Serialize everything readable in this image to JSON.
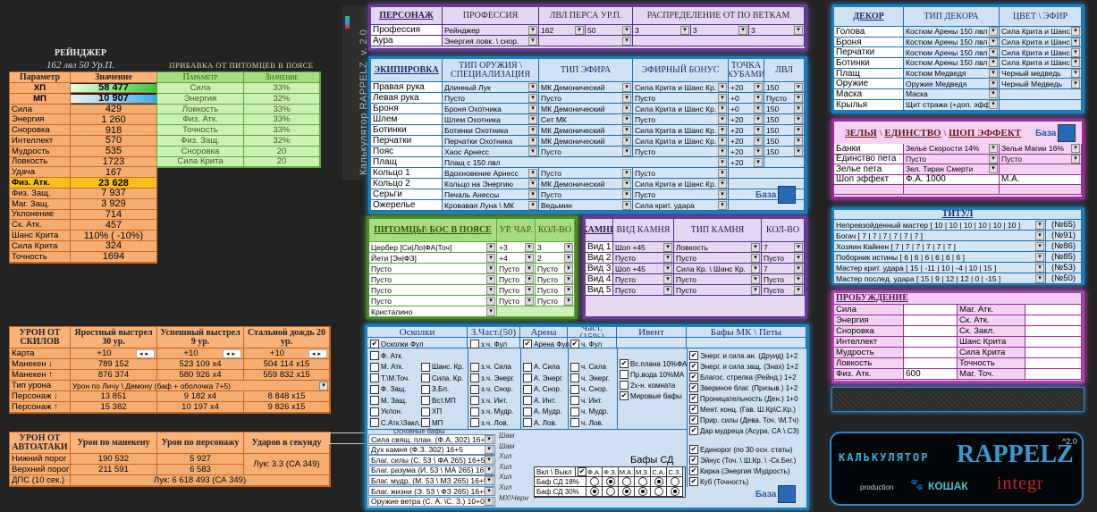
{
  "app": {
    "vertical_title": "Калькулятор RAPPELZ",
    "version": "v. 2.0"
  },
  "stats": {
    "class_title": "РЕЙНДЖЕР",
    "subtitle": "162 лвл 50 Ур.П.",
    "headers": [
      "Параметр",
      "Значение"
    ],
    "rows": [
      [
        "ХП",
        "58 477"
      ],
      [
        "МП",
        "10 907"
      ],
      [
        "Сила",
        "429"
      ],
      [
        "Энергия",
        "1 260"
      ],
      [
        "Сноровка",
        "918"
      ],
      [
        "Интеллект",
        "570"
      ],
      [
        "Мудрость",
        "535"
      ],
      [
        "Ловкость",
        "1723"
      ],
      [
        "Удача",
        "167"
      ],
      [
        "Физ. Атк.",
        "23 628"
      ],
      [
        "Физ. Защ.",
        "7 937"
      ],
      [
        "Маг. Защ.",
        "3 929"
      ],
      [
        "Уклонение",
        "714"
      ],
      [
        "Ск. Атк.",
        "457"
      ],
      [
        "Шанс Крита",
        "110%  ( -10%)"
      ],
      [
        "Сила Крита",
        "324"
      ],
      [
        "Точность",
        "1694"
      ]
    ]
  },
  "pet_bonus": {
    "title": "ПРИБАВКА ОТ ПИТОМЦЕВ В ПОЯСЕ",
    "headers": [
      "Параметр",
      "Значение"
    ],
    "rows": [
      [
        "Сила",
        "33%"
      ],
      [
        "Энергия",
        "32%"
      ],
      [
        "Ловкость",
        "33%"
      ],
      [
        "Физ. Атк.",
        "33%"
      ],
      [
        "Точность",
        "33%"
      ],
      [
        "Физ. Защ.",
        "32%"
      ],
      [
        "Сноровка",
        "20"
      ],
      [
        "Сила Крита",
        "20"
      ]
    ]
  },
  "skills": {
    "title": "УРОН ОТ СКИЛОВ",
    "columns": [
      "Яростный выстрел 30 ур.",
      "Успешный выстрел 9 ур.",
      "Стальной дождь 20 ур."
    ],
    "rows": [
      [
        "Карта",
        "+10",
        "+10",
        "+10"
      ],
      [
        "Манекен ↓",
        "789 152",
        "523 109   x4",
        "504 114   x15"
      ],
      [
        "Манекен ↑",
        "876 374",
        "580 926   x4",
        "559 832   x15"
      ],
      [
        "Тип урона",
        "Урон по Личу \\ Демону (баф + оболочка 7+5)"
      ],
      [
        "Персонаж ↓",
        "13 851",
        "9 182   x4",
        "8 848   x15"
      ],
      [
        "Персонаж ↑",
        "15 382",
        "10 197   x4",
        "9 826   x15"
      ]
    ]
  },
  "autoattack": {
    "title": "УРОН ОТ АВТОАТАКИ",
    "columns": [
      "Урон по манекену",
      "Урон по персонажу",
      "Ударов в секунду"
    ],
    "rows": [
      [
        "Нижний порог",
        "190 532",
        "5 927",
        "Лук: 3.3  (СА 349)"
      ],
      [
        "Верхний порог",
        "211 591",
        "6 583"
      ],
      [
        "ДПС (10 сек.)",
        "Лук: 6 618 493 (СА 349)"
      ]
    ]
  },
  "character": {
    "headers": [
      "ПЕРСОНАЖ",
      "ПРОФЕССИЯ",
      "ЛВЛ ПЕРСА   УР.П.",
      "РАСПРЕДЕЛЕНИЕ ОТ ПО ВЕТКАМ"
    ],
    "rows": [
      [
        "Профессия",
        "Рейнджер",
        "162",
        "50",
        "3",
        "3",
        "3"
      ],
      [
        "Аура",
        "Энергия ловк. \\ снор.",
        ""
      ]
    ]
  },
  "equipment": {
    "headers": [
      "ЭКИПИРОВКА",
      "ТИП ОРУЖИЯ \\ СПЕЦИАЛИЗАЦИЯ",
      "ТИП ЭФИРА",
      "ЭФИРНЫЙ БОНУС",
      "ТОЧКА КУБАМИ",
      "ЛВЛ"
    ],
    "rows": [
      [
        "Правая рука",
        "Длинный Лук",
        "МК Демонический",
        "Сила Крита и Шанс Кр.",
        "+20",
        "150"
      ],
      [
        "Левая рука",
        "Пусто",
        "Пусто",
        "Пусто",
        "+0",
        "Пусто"
      ],
      [
        "Броня",
        "Броня Охотника",
        "МК Демонический",
        "Сила Крита и Шанс Кр.",
        "+0",
        "150"
      ],
      [
        "Шлем",
        "Шлем Охотника",
        "Сет МК",
        "Пусто",
        "+20",
        "150"
      ],
      [
        "Ботинки",
        "Ботинки Охотника",
        "МК Демонический",
        "Сила Крита и Шанс Кр.",
        "+20",
        "150"
      ],
      [
        "Перчатки",
        "Перчатки Охотника",
        "МК Демонический",
        "Сила Крита и Шанс Кр.",
        "+20",
        "150"
      ],
      [
        "Пояс",
        "Хаос Арнесс",
        "Пусто",
        "Пусто",
        "+20",
        "150"
      ],
      [
        "Плащ",
        "Плащ с 150 лвл",
        "+20"
      ],
      [
        "Кольцо 1",
        "Вдохновение Арнесс",
        "Пусто",
        "Пусто"
      ],
      [
        "Кольцо 2",
        "Кольцо на Энергию",
        "МК Демонический",
        "Сила Крита и Шанс Кр."
      ],
      [
        "Серьги",
        "Печаль Анессы",
        "Пусто",
        "Пусто"
      ],
      [
        "Ожерелье",
        "Кровавая Луна \\ МК",
        "Ведьмин",
        "Сила крит. удара"
      ]
    ],
    "base_label": "База"
  },
  "pets": {
    "headers": [
      "ПИТОМЦЫ\\ БОС В ПОЯСЕ",
      "УР. ЧАР.",
      "КОЛ-ВО"
    ],
    "rows": [
      [
        "Цербер     [Си|Ло|ФА|Точ]",
        "+3",
        "3"
      ],
      [
        "Йети      [Эн|ФЗ]",
        "+4",
        "2"
      ],
      [
        "Пусто",
        "Пусто",
        "Пусто"
      ],
      [
        "Пусто",
        "Пусто",
        "Пусто"
      ],
      [
        "Пусто",
        "Пусто",
        "Пусто"
      ],
      [
        "Пусто",
        "Пусто",
        "Пусто"
      ],
      [
        "Кристалино"
      ]
    ]
  },
  "stones": {
    "headers": [
      "КАМНИ",
      "ВИД КАМНЯ",
      "ТИП КАМНЯ",
      "КОЛ-ВО"
    ],
    "rows": [
      [
        "Вид 1",
        "Шоп +45",
        "Ловкость",
        "7"
      ],
      [
        "Вид 2",
        "Пусто",
        "Пусто",
        "Пусто"
      ],
      [
        "Вид 3",
        "Шоп +45",
        "Сила Кр. \\ Шанс Кр.",
        "7"
      ],
      [
        "Вид 4",
        "Пусто",
        "Пусто",
        "Пусто"
      ],
      [
        "Вид 5",
        "Пусто",
        "Пусто",
        "Пусто"
      ]
    ]
  },
  "decor": {
    "headers": [
      "ДЕКОР",
      "ТИП ДЕКОРА",
      "ЦВЕТ \\ ЭФИР"
    ],
    "rows": [
      [
        "Голова",
        "Костюм Арены 150 лвл",
        "Сила Крита и Шанс Кр."
      ],
      [
        "Броня",
        "Костюм Арены 150 лвл",
        "Сила Крита и Шанс Кр."
      ],
      [
        "Перчатки",
        "Костюм Арены 150 лвл",
        "Сила Крита и Шанс Кр."
      ],
      [
        "Ботинки",
        "Костюм Арены 150 лвл",
        "Сила Крита и Шанс Кр."
      ],
      [
        "Плащ",
        "Костюм Медведя",
        "Черный медведь"
      ],
      [
        "Оружие",
        "Оружие Медведя",
        "Черный Медведь"
      ],
      [
        "Маска",
        "Маска"
      ],
      [
        "Крылья",
        "Щит стража (+доп. эффект)"
      ]
    ]
  },
  "potions": {
    "title_parts": [
      "ЗЕЛЬЯ",
      "ЕДИНСТВО",
      "ШОП ЭФФЕКТ"
    ],
    "separator": "\\",
    "base_label": "База",
    "rows": [
      [
        "Банки",
        "Зелье Скорости 14%",
        "Зелье Магии 16%"
      ],
      [
        "Единство пета",
        "Пусто",
        "Пусто"
      ],
      [
        "Зелье пета",
        "Зел. Тиран Смерти"
      ],
      [
        "Шоп эффект",
        "Ф.А.        1000",
        "М.А."
      ]
    ]
  },
  "titles": {
    "title": "ТИТУЛ",
    "rows": [
      [
        "Непревзойденный мастер    [ 10 | 10 | 10 | 10 | 10 | 10 ]",
        "(№65)"
      ],
      [
        "Богач    [ 7 | 7 | 7 | 7 | 7 | 7 ]",
        "(№91)"
      ],
      [
        "Хозяин Кайнен    [ 7 | 7 | 7 | 7 | 7 | 7 ]",
        "(№86)"
      ],
      [
        "Поборник истины    [ 6 | 6 | 6 | 6 | 6 | 6 ]",
        "(№85)"
      ],
      [
        "Мастер крит. удара    [ 15 | -11 | 10 | -4 | 10 | 15 ]",
        "(№53)"
      ],
      [
        "Мастер послед. удара    [ 15 | 9 | 12 | 12 | 0 | -15 ]",
        "(№50)"
      ]
    ]
  },
  "awakening": {
    "title": "ПРОБУЖДЕНИЕ",
    "rows": [
      [
        "Сила",
        "",
        "Маг. Атк.",
        ""
      ],
      [
        "Энергия",
        "",
        "Ск. Атк.",
        ""
      ],
      [
        "Сноровка",
        "",
        "Ск. Закл.",
        ""
      ],
      [
        "Интеллект",
        "",
        "Шанс Крита",
        ""
      ],
      [
        "Мудрость",
        "",
        "Сила Крита",
        ""
      ],
      [
        "Ловкость",
        "",
        "Точность",
        ""
      ],
      [
        "Физ. Атк.",
        "600",
        "Маг. Точ.",
        ""
      ]
    ]
  },
  "buffs": {
    "headers": [
      "Осколки",
      "З.Част.(50)",
      "Арена",
      "Част.(15%)",
      "Ивент",
      "Бафы МК \\ Петы"
    ],
    "full": [
      {
        "label": "Осколки Фул",
        "checked": true
      },
      {
        "label": "з.ч. Фул",
        "checked": false
      },
      {
        "label": "Арена Фул",
        "checked": true
      },
      {
        "label": "ч. Фул",
        "checked": true
      }
    ],
    "shards_col1": [
      "Ф. Атк.",
      "М. Атк.",
      "Т.\\М.Точ.",
      "Ф. Защ.",
      "М. Защ.",
      "Уклон.",
      "С.Атк.\\Закл."
    ],
    "shards_col2": [
      "Шанс. Кр.",
      "Сила. Кр.",
      "З.Бл.",
      "Вст.МП",
      "ХП",
      "МП"
    ],
    "zch": [
      "з.ч. Сила",
      "з.ч. Энерг.",
      "з.ч. Снор.",
      "з.ч. Инт.",
      "з.ч. Мудр.",
      "з.ч. Лов."
    ],
    "arena": [
      "А. Сила",
      "А. Энерг.",
      "А. Снор.",
      "А. Инт.",
      "А. Мудр.",
      "А. Лов."
    ],
    "ch": [
      "ч. Сила",
      "ч. Энерг.",
      "ч. Снор.",
      "ч. Инт.",
      "ч. Мудр.",
      "ч. Лов."
    ],
    "event": [
      {
        "label": "Вс.плана 10%ФА",
        "checked": true
      },
      {
        "label": "Пр.вода 10%МА",
        "checked": false
      },
      {
        "label": "2х-н. комната",
        "checked": false
      },
      {
        "label": "Мировые бафы",
        "checked": true
      }
    ],
    "mk_pets": [
      {
        "label": "Энерг. и сила ан. (Друид) 1+2",
        "checked": true
      },
      {
        "label": "Энерг. и сила защ. (Знах) 1+2",
        "checked": true
      },
      {
        "label": "Благос. стрелка (Рейнд.) 1+2",
        "checked": true
      },
      {
        "label": "Звериное благ. (Призыв.) 1+2",
        "checked": true
      },
      {
        "label": "Проницательность (Ден.) 1+0",
        "checked": true
      },
      {
        "label": "Мент. конц. (Гав. Ш.Кр\\С.Кр.)",
        "checked": true
      },
      {
        "label": "Прир. силы (Дева. Точ. \\М.Тч)",
        "checked": true
      },
      {
        "label": "Дар мудреца (Асура. СА \\ СЗ)",
        "checked": true
      },
      {
        "label": "Единорог (по 30 осн. статы)",
        "checked": true
      },
      {
        "label": "Эйнус (Точ. \\ Ш.Кр. \\ -Ск.Бег.)",
        "checked": true
      },
      {
        "label": "Кирка (Энергия \\Мудрость)",
        "checked": true
      },
      {
        "label": "Куб (Точность)",
        "checked": true
      }
    ],
    "main_buffs_title": "Основные бафы",
    "main_buffs": [
      [
        "Сила свящ. план. (Ф.А. 302) 16+5",
        "Шам"
      ],
      [
        "Дух камня (Ф.З. 302) 16+5",
        "Шам"
      ],
      [
        "Благ. силы (С. 53 \\ ФА 265) 16+5",
        "Хил"
      ],
      [
        "Благ. разума (И. 53 \\ МА 265) 16+5",
        "Хил"
      ],
      [
        "Благ. мудр. (М. 53 \\ МЗ 265) 16+5",
        "Хил"
      ],
      [
        "Благ. жизни (Э. 53 \\ ФЗ 265) 16+5",
        "Хил"
      ],
      [
        "Оружие ветра (С. А. \\С. З.) 10+0",
        "МХ\\Черн"
      ]
    ],
    "sd": {
      "title": "Бафы СД",
      "toggle_label": "Вкл \\ Выкл",
      "toggle": true,
      "columns": [
        "Ф.А.",
        "Ф.З.",
        "М.А.",
        "М.З.",
        "С.А.",
        "С.З."
      ],
      "rows": [
        {
          "label": "Баф СД 18%",
          "selected": [
            false,
            true,
            false,
            false,
            true,
            false
          ]
        },
        {
          "label": "Баф СД 30%",
          "selected": [
            true,
            false,
            true,
            true,
            false,
            true
          ]
        }
      ]
    },
    "base_label": "База"
  },
  "logo": {
    "line1": "КАЛЬКУЛЯТОР",
    "line2": "RAPPELZ",
    "version": "^2.0",
    "production": "production",
    "brand1": "КОШАК",
    "brand2": "integr"
  },
  "colors": {
    "orange": "#f6ad72",
    "gold": "#f6c21a",
    "green": "#cdf0b4",
    "blue_border": "#1a7fc0",
    "purple_border": "#6a3a9a",
    "pink_border": "#b040b0"
  }
}
